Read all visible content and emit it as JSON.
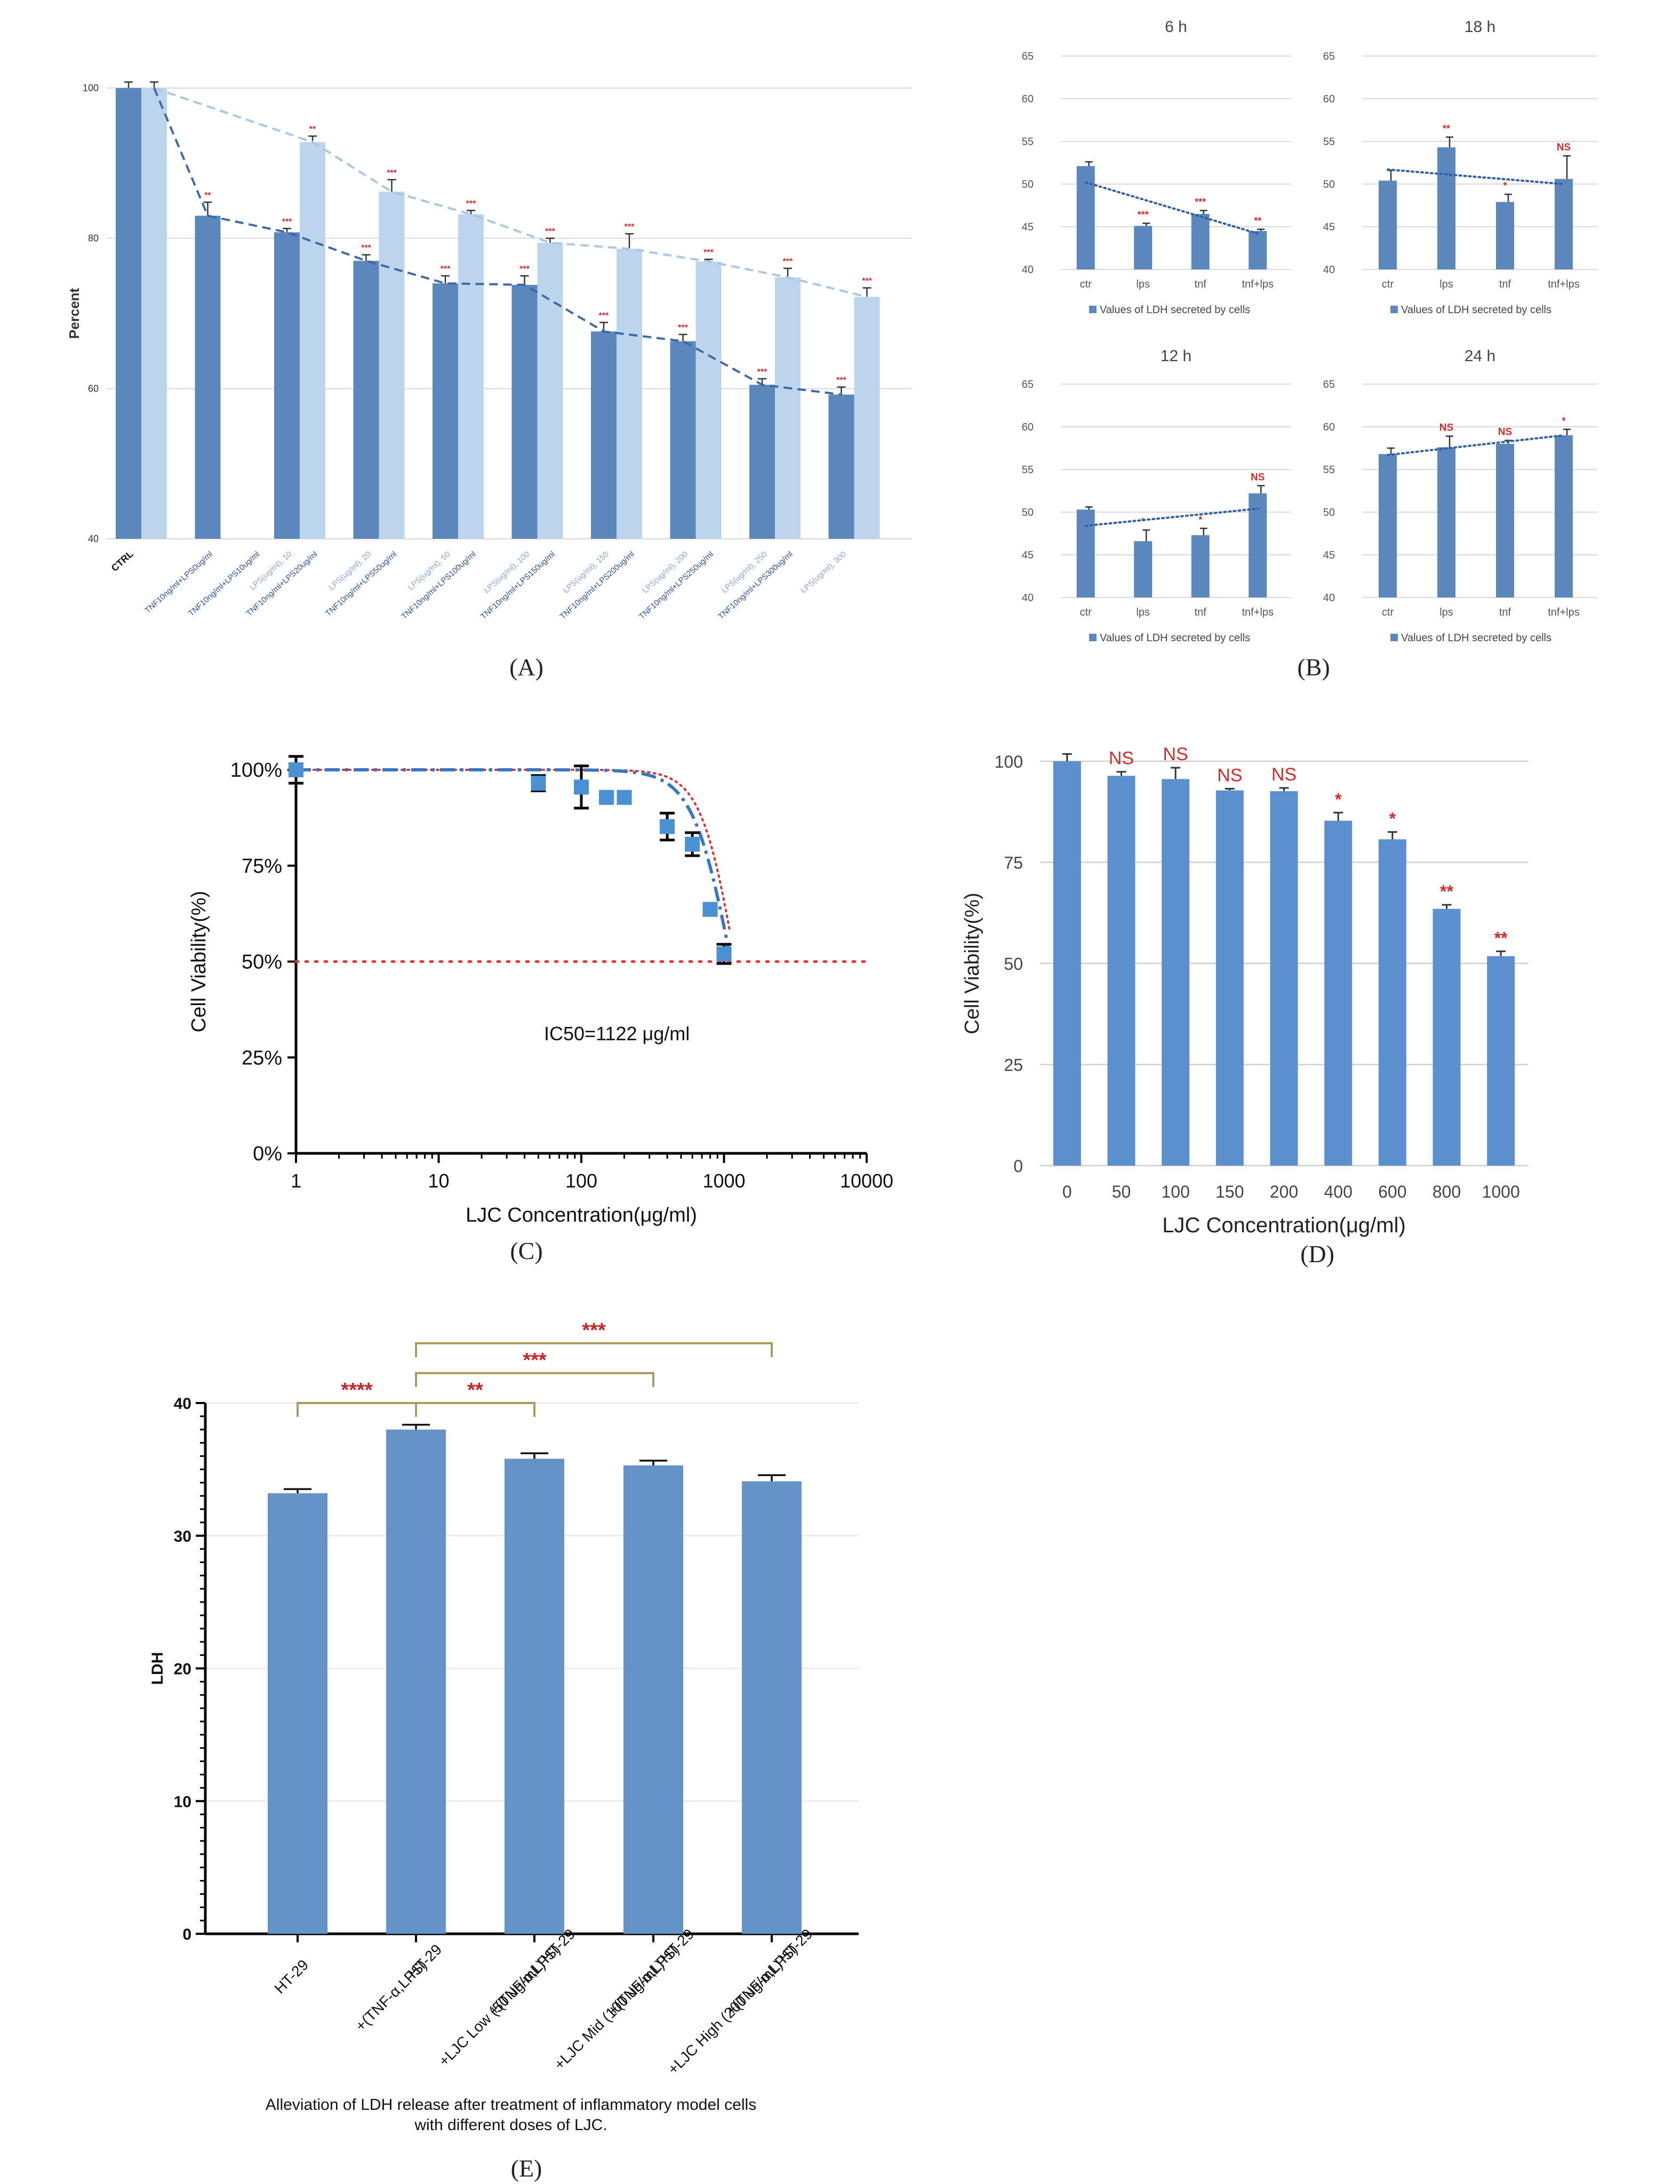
{
  "panel_labels": [
    "(A)",
    "(B)",
    "(C)",
    "(D)",
    "(E)"
  ],
  "chart_data": [
    {
      "id": "A",
      "type": "bar",
      "ylabel": "Percent",
      "ylim": [
        40,
        100
      ],
      "yticks": [
        "40",
        "60",
        "80",
        "100"
      ],
      "categories": [
        "CTRL",
        "TNF10ng/ml+LPS0ug/ml",
        "TNF10ng/ml+LPS10ug/ml",
        "LPS(ug/ml), 10",
        "TNF10ng/ml+LPS20ug/ml",
        "LPS(ug/ml), 20",
        "TNF10ng/ml+LPS50ug/ml",
        "LPS(ug/ml), 50",
        "TNF10ng/ml+LPS100ug/ml",
        "LPS(ug/ml), 100",
        "TNF10ng/ml+LPS150ug/ml",
        "LPS(ug/ml), 150",
        "TNF10ng/ml+LPS200ug/ml",
        "LPS(ug/ml), 200",
        "TNF10ng/ml+LPS250ug/ml",
        "LPS(ug/ml), 250",
        "TNF10ng/ml+LPS300ug/ml",
        "LPS(ug/ml), 300"
      ],
      "groups": [
        {
          "dark": 100,
          "dark_err": 0.8,
          "light": 100,
          "light_err": 0.8,
          "dark_sig": "",
          "light_sig": ""
        },
        {
          "dark": 83,
          "dark_err": 1.8,
          "light": null,
          "light_err": 0,
          "dark_sig": "**",
          "light_sig": ""
        },
        {
          "dark": 80.8,
          "dark_err": 0.5,
          "light": 92.8,
          "light_err": 0.8,
          "dark_sig": "***",
          "light_sig": "**"
        },
        {
          "dark": 77,
          "dark_err": 0.8,
          "light": 86.2,
          "light_err": 1.6,
          "dark_sig": "***",
          "light_sig": "***"
        },
        {
          "dark": 74,
          "dark_err": 1.0,
          "light": 83.2,
          "light_err": 0.5,
          "dark_sig": "***",
          "light_sig": "***"
        },
        {
          "dark": 73.8,
          "dark_err": 1.2,
          "light": 79.4,
          "light_err": 0.6,
          "dark_sig": "***",
          "light_sig": "***"
        },
        {
          "dark": 67.6,
          "dark_err": 1.2,
          "light": 78.6,
          "light_err": 2.0,
          "dark_sig": "***",
          "light_sig": "***"
        },
        {
          "dark": 66.3,
          "dark_err": 0.9,
          "light": 76.9,
          "light_err": 0.3,
          "dark_sig": "***",
          "light_sig": "***"
        },
        {
          "dark": 60.5,
          "dark_err": 0.8,
          "light": 74.8,
          "light_err": 1.2,
          "dark_sig": "***",
          "light_sig": "***"
        },
        {
          "dark": 59.2,
          "dark_err": 1.0,
          "light": 72.2,
          "light_err": 1.2,
          "dark_sig": "***",
          "light_sig": "***"
        }
      ],
      "colors": {
        "dark": "#5b87bd",
        "light": "#bcd5ec",
        "dark_line": "#3d68a6",
        "light_line": "#a9c6e3",
        "sig": "#d42a2a"
      }
    },
    {
      "id": "B",
      "type": "bar",
      "categories": [
        "ctr",
        "lps",
        "tnf",
        "tnf+lps"
      ],
      "ylim": [
        40,
        65
      ],
      "yticks": [
        "40",
        "45",
        "50",
        "55",
        "60",
        "65"
      ],
      "legend": "Values of LDH secreted by cells",
      "color": "#5b87bd",
      "subplots": [
        {
          "title": "6 h",
          "values": [
            52.1,
            45.1,
            46.5,
            44.5
          ],
          "errors": [
            0.5,
            0.3,
            0.4,
            0.2
          ],
          "sig": [
            "",
            "***",
            "***",
            "**"
          ],
          "trend": [
            50.2,
            44.2
          ]
        },
        {
          "title": "18 h",
          "values": [
            50.4,
            54.3,
            47.9,
            50.6
          ],
          "errors": [
            1.2,
            1.2,
            0.9,
            2.7
          ],
          "sig": [
            "",
            "**",
            "*",
            "NS"
          ],
          "trend": [
            51.7,
            50.0
          ]
        },
        {
          "title": "12 h",
          "values": [
            50.3,
            46.6,
            47.3,
            52.2
          ],
          "errors": [
            0.3,
            1.3,
            0.8,
            0.9
          ],
          "sig": [
            "",
            "*",
            "*",
            "NS"
          ],
          "trend": [
            48.4,
            50.4
          ]
        },
        {
          "title": "24 h",
          "values": [
            56.8,
            57.6,
            58.0,
            59.0
          ],
          "errors": [
            0.7,
            1.3,
            0.4,
            0.7
          ],
          "sig": [
            "",
            "NS",
            "NS",
            "*"
          ],
          "trend": [
            56.7,
            59.0
          ]
        }
      ]
    },
    {
      "id": "C",
      "type": "scatter",
      "xlabel": "LJC Concentration(μg/ml)",
      "ylabel": "Cell Viability(%)",
      "x_scale": "log",
      "xlim": [
        1,
        10000
      ],
      "ylim": [
        0,
        100
      ],
      "xticks": [
        "1",
        "10",
        "100",
        "1000",
        "10000"
      ],
      "yticks": [
        "0%",
        "25%",
        "50%",
        "75%",
        "100%"
      ],
      "annotation": "IC50=1122 μg/ml",
      "reference_y": 50,
      "points": [
        {
          "x": 1,
          "y": 100,
          "err": 3.5
        },
        {
          "x": 50,
          "y": 96.5,
          "err": 2.0
        },
        {
          "x": 100,
          "y": 95.5,
          "err": 5.5
        },
        {
          "x": 150,
          "y": 92.8,
          "err": 0.6
        },
        {
          "x": 200,
          "y": 92.8,
          "err": 0.6
        },
        {
          "x": 400,
          "y": 85.2,
          "err": 3.5
        },
        {
          "x": 600,
          "y": 80.6,
          "err": 3.0
        },
        {
          "x": 800,
          "y": 63.6,
          "err": 1.0
        },
        {
          "x": 1000,
          "y": 52.0,
          "err": 2.5
        }
      ],
      "colors": {
        "point": "#4a90d2",
        "fit": "#3a76c0",
        "fit_alt": "#d4333a",
        "reference": "#e03a3a"
      }
    },
    {
      "id": "D",
      "type": "bar",
      "xlabel": "LJC Concentration(μg/ml)",
      "ylabel": "Cell Viability(%)",
      "ylim": [
        0,
        100
      ],
      "yticks": [
        "0",
        "25",
        "50",
        "75",
        "100"
      ],
      "categories": [
        "0",
        "50",
        "100",
        "150",
        "200",
        "400",
        "600",
        "800",
        "1000"
      ],
      "values": [
        100,
        96.4,
        95.6,
        92.8,
        92.6,
        85.3,
        80.7,
        63.5,
        51.8
      ],
      "errors": [
        1.8,
        1.0,
        2.8,
        0.4,
        0.8,
        2.0,
        1.8,
        1.0,
        1.2
      ],
      "sig": [
        "",
        "NS",
        "NS",
        "NS",
        "NS",
        "*",
        "*",
        "**",
        "**"
      ],
      "color": "#5b8fce"
    },
    {
      "id": "E",
      "type": "bar",
      "ylabel": "LDH",
      "ylim": [
        0,
        40
      ],
      "yticks": [
        "0",
        "10",
        "20",
        "30",
        "40"
      ],
      "categories": [
        [
          "HT-29"
        ],
        [
          "HT-29",
          "+(TNF-α,LPS)"
        ],
        [
          "HT-29",
          "+(TNF-α,LPS)",
          "+LJC Low (50 ug/mL)"
        ],
        [
          "HT-29",
          "+(TNF-α,LPS)",
          "+LJC Mid (100 ug/mL)"
        ],
        [
          "HT-29",
          "+(TNF-α,LPS)",
          "+LJC High (200 ug/mL)"
        ]
      ],
      "values": [
        33.2,
        38.0,
        35.8,
        35.3,
        34.1
      ],
      "errors": [
        0.15,
        0.2,
        0.25,
        0.2,
        0.3
      ],
      "comparisons": [
        {
          "from": 0,
          "to": 1,
          "label": "****"
        },
        {
          "from": 1,
          "to": 2,
          "label": "**"
        },
        {
          "from": 1,
          "to": 3,
          "label": "***"
        },
        {
          "from": 1,
          "to": 4,
          "label": "***"
        }
      ],
      "caption": [
        "Alleviation of LDH release after treatment of inflammatory model cells",
        "with different doses of LJC."
      ],
      "colors": {
        "bar": "#6593c7",
        "bracket": "#a89a62",
        "sig": "#c8242a"
      }
    }
  ]
}
